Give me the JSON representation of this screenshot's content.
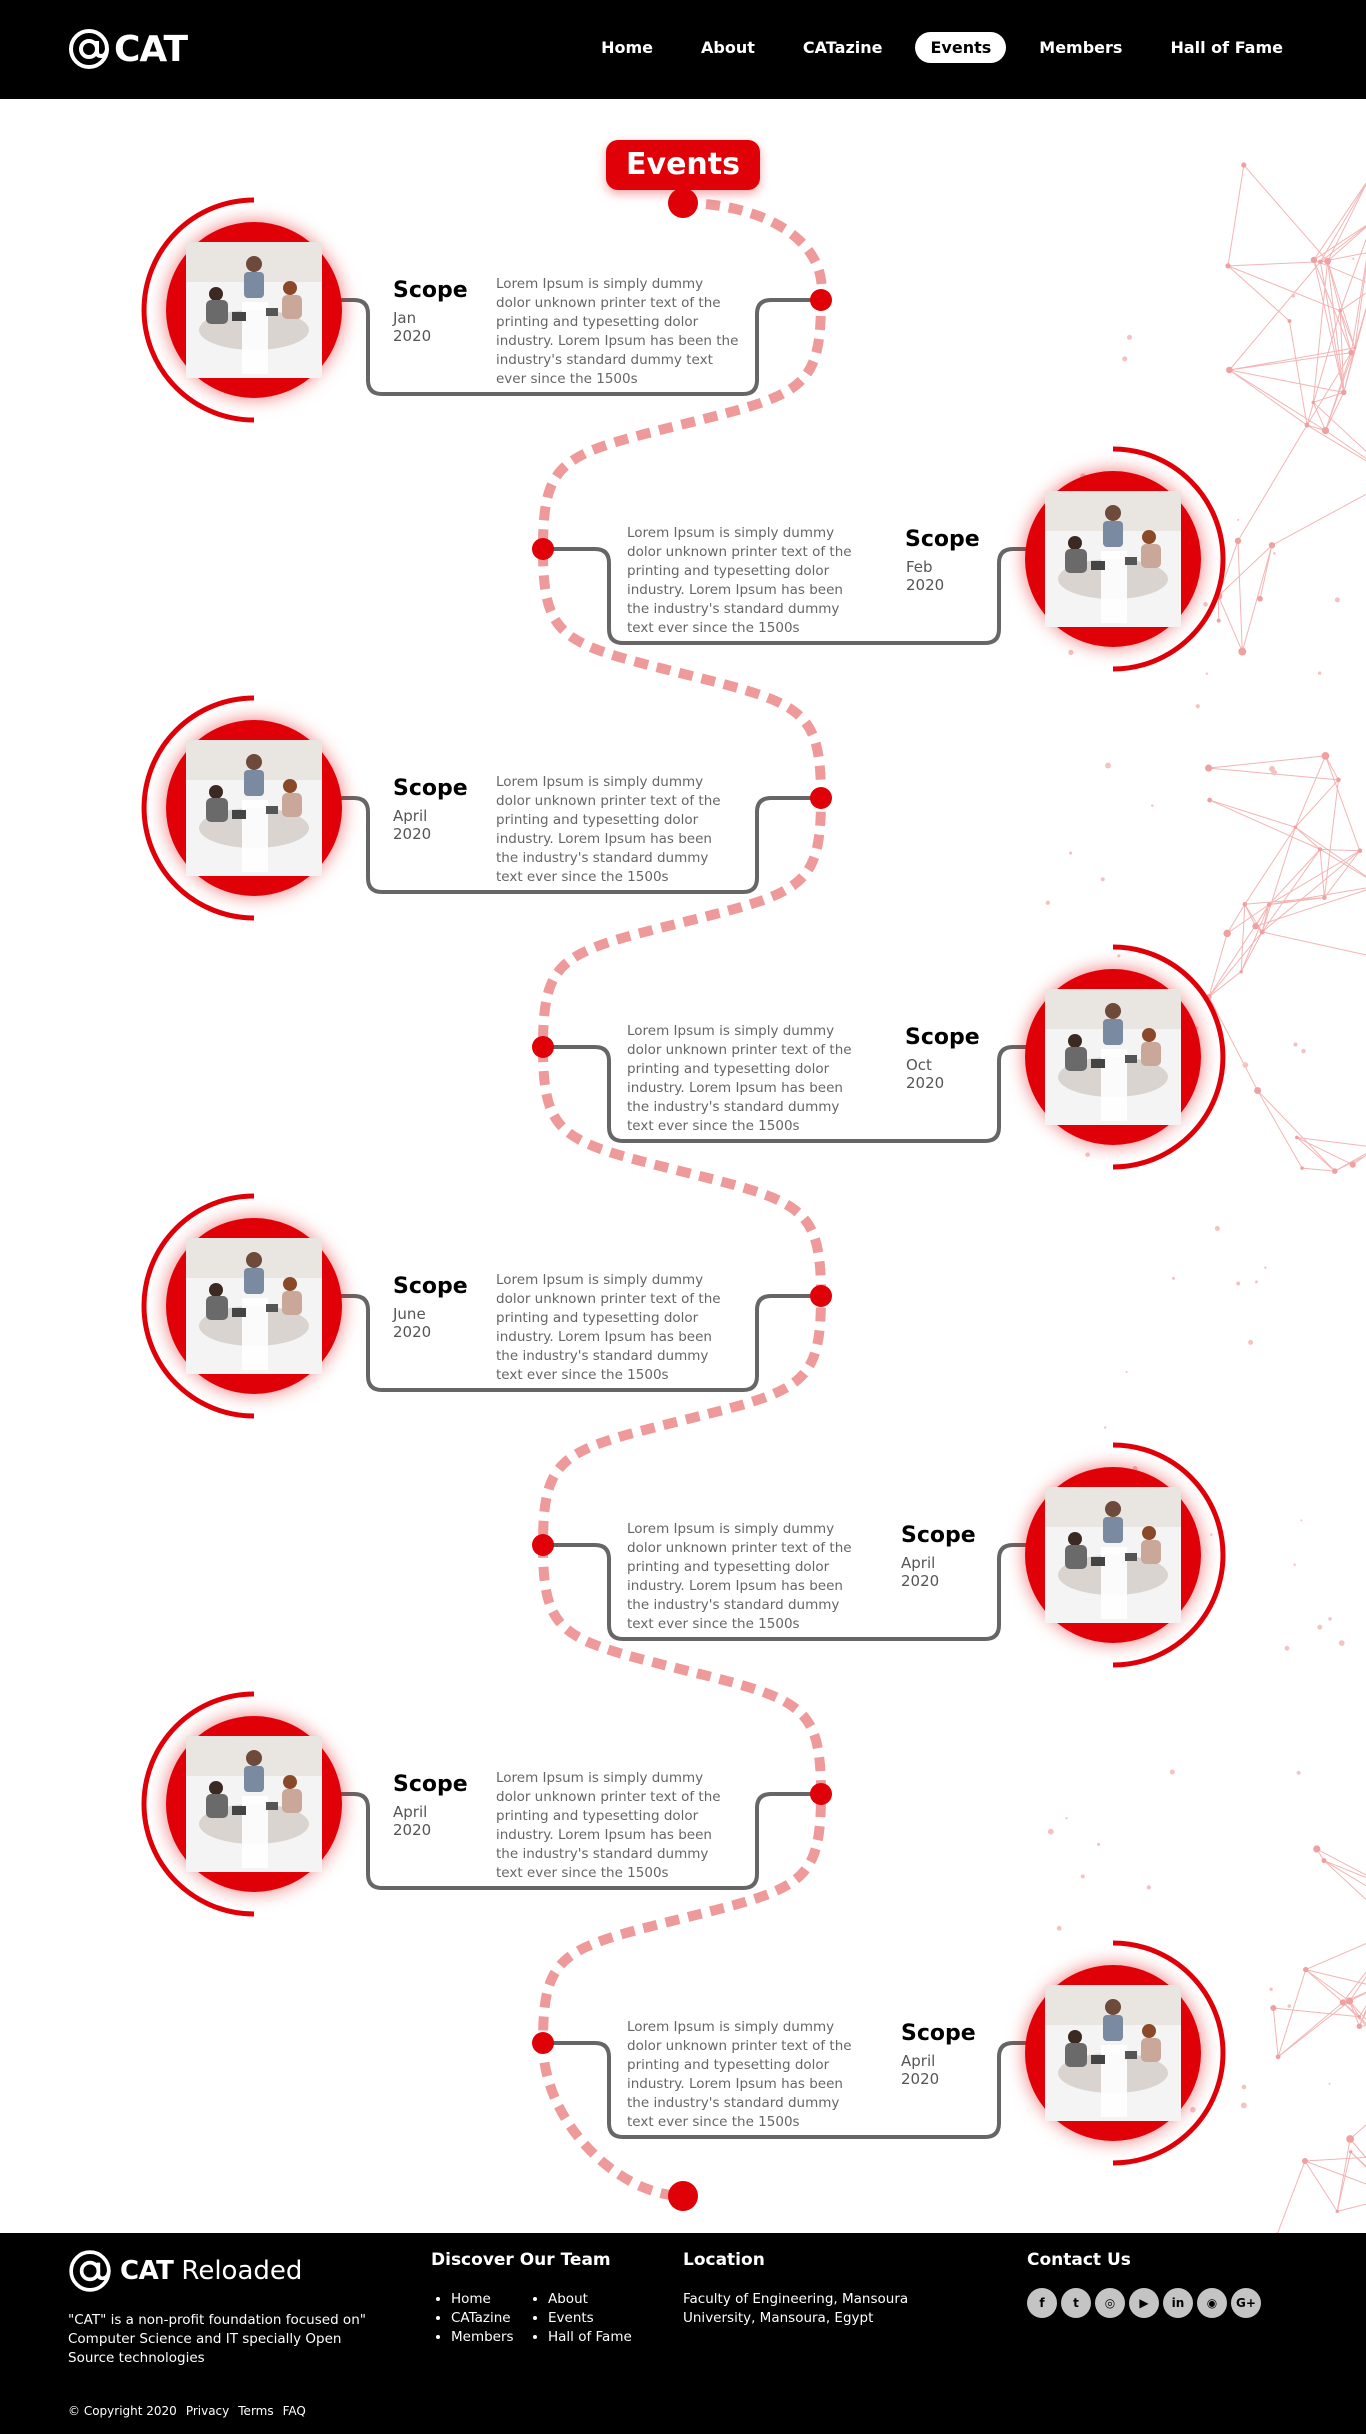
{
  "header": {
    "logo_text": "CAT",
    "nav": [
      {
        "label": "Home",
        "active": false
      },
      {
        "label": "About",
        "active": false
      },
      {
        "label": "CATazine",
        "active": false
      },
      {
        "label": "Events",
        "active": true
      },
      {
        "label": "Members",
        "active": false
      },
      {
        "label": "Hall of Fame",
        "active": false
      }
    ]
  },
  "main": {
    "title": "Events",
    "events": [
      {
        "title": "Scope",
        "date": "Jan 2020",
        "description": "Lorem Ipsum is simply dummy dolor unknown printer text of the printing and typesetting dolor industry. Lorem Ipsum has been the industry's standard dummy text ever since the 1500s",
        "side": "left"
      },
      {
        "title": "Scope",
        "date": "Feb 2020",
        "description": "Lorem Ipsum is simply dummy dolor unknown printer text of the printing and typesetting dolor industry. Lorem Ipsum has been the industry's standard dummy text ever since the 1500s",
        "side": "right"
      },
      {
        "title": "Scope",
        "date": "April 2020",
        "description": "Lorem Ipsum is simply dummy dolor unknown printer text of the printing and typesetting dolor industry. Lorem Ipsum has been the industry's standard dummy text ever since the 1500s",
        "side": "left"
      },
      {
        "title": "Scope",
        "date": "Oct 2020",
        "description": "Lorem Ipsum is simply dummy dolor unknown printer text of the printing and typesetting dolor industry. Lorem Ipsum has been the industry's standard dummy text ever since the 1500s",
        "side": "right"
      },
      {
        "title": "Scope",
        "date": "June 2020",
        "description": "Lorem Ipsum is simply dummy dolor unknown printer text of the printing and typesetting dolor industry. Lorem Ipsum has been the industry's standard dummy text ever since the 1500s",
        "side": "left"
      },
      {
        "title": "Scope",
        "date": "April 2020",
        "description": "Lorem Ipsum is simply dummy dolor unknown printer text of the printing and typesetting dolor industry. Lorem Ipsum has been the industry's standard dummy text ever since the 1500s",
        "side": "right"
      },
      {
        "title": "Scope",
        "date": "April 2020",
        "description": "Lorem Ipsum is simply dummy dolor unknown printer text of the printing and typesetting dolor industry. Lorem Ipsum has been the industry's standard dummy text ever since the 1500s",
        "side": "left"
      },
      {
        "title": "Scope",
        "date": "April 2020",
        "description": "Lorem Ipsum is simply dummy dolor unknown printer text of the printing and typesetting dolor industry. Lorem Ipsum has been the industry's standard dummy text ever since the 1500s",
        "side": "right"
      }
    ]
  },
  "footer": {
    "brand_bold": "CAT",
    "brand_light": "Reloaded",
    "description": "\"CAT\" is a non-profit foundation focused on\" Computer Science and IT specially Open Source technologies",
    "team_heading": "Discover Our Team",
    "team_links_col1": [
      "Home",
      "CATazine",
      "Members"
    ],
    "team_links_col2": [
      "About",
      "Events",
      "Hall of Fame"
    ],
    "location_heading": "Location",
    "location_text": "Faculty of Engineering, Mansoura University, Mansoura, Egypt",
    "contact_heading": "Contact Us",
    "social": [
      {
        "name": "facebook-icon",
        "glyph": "f"
      },
      {
        "name": "twitter-icon",
        "glyph": "t"
      },
      {
        "name": "instagram-icon",
        "glyph": "◎"
      },
      {
        "name": "youtube-icon",
        "glyph": "▶"
      },
      {
        "name": "linkedin-icon",
        "glyph": "in"
      },
      {
        "name": "github-icon",
        "glyph": "◉"
      },
      {
        "name": "google-plus-icon",
        "glyph": "G+"
      }
    ],
    "copyright": "© Copyright 2020",
    "bottom_links": [
      "Privacy",
      "Terms",
      "FAQ"
    ]
  },
  "colors": {
    "accent": "#e00008",
    "road": "#ef9a9a",
    "connector": "#666666"
  }
}
